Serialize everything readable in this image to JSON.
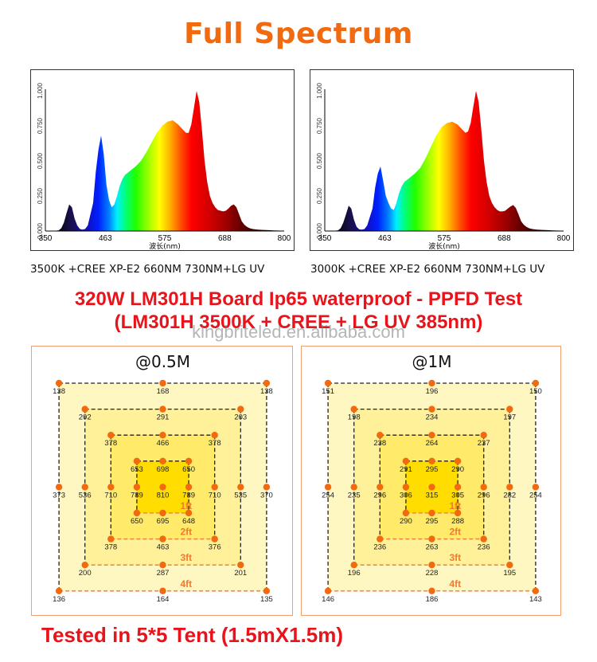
{
  "header": {
    "title": "Full Spectrum"
  },
  "ppfd_heading": {
    "line1": "320W LM301H Board Ip65 waterproof - PPFD Test",
    "line2": "(LM301H 3500K + CREE + LG UV 385nm)"
  },
  "watermark": "kingbriteled.en.alibaba.com",
  "footer": "Tested in 5*5 Tent (1.5mX1.5m)",
  "colors": {
    "title": "#f26a10",
    "heading_red": "#e8141b",
    "dot_orange": "#f26a10"
  },
  "chart_data": [
    {
      "type": "area",
      "title": "",
      "caption": "3500K +CREE XP-E2 660NM 730NM+LG UV",
      "xlabel": "波长(nm)",
      "ylabel": "",
      "xlim": [
        350,
        800
      ],
      "ylim": [
        0,
        1
      ],
      "xticks": [
        "350",
        "463",
        "575",
        "688",
        "800"
      ],
      "yticks": [
        "0.000",
        "0.250",
        "0.500",
        "0.750",
        "1.000"
      ],
      "x": [
        350,
        365,
        375,
        380,
        385,
        390,
        395,
        400,
        405,
        410,
        415,
        420,
        425,
        430,
        440,
        445,
        450,
        455,
        460,
        465,
        470,
        475,
        480,
        485,
        490,
        495,
        500,
        510,
        520,
        530,
        540,
        550,
        560,
        570,
        580,
        590,
        600,
        605,
        610,
        615,
        620,
        625,
        630,
        635,
        640,
        645,
        650,
        655,
        660,
        665,
        670,
        675,
        680,
        685,
        690,
        695,
        700,
        705,
        710,
        715,
        720,
        725,
        730,
        735,
        740,
        745,
        750,
        760,
        770,
        780,
        800
      ],
      "values": [
        0,
        0,
        0.005,
        0.02,
        0.06,
        0.13,
        0.19,
        0.17,
        0.09,
        0.04,
        0.015,
        0.01,
        0.015,
        0.04,
        0.2,
        0.42,
        0.58,
        0.68,
        0.55,
        0.33,
        0.22,
        0.17,
        0.19,
        0.25,
        0.32,
        0.37,
        0.4,
        0.43,
        0.46,
        0.5,
        0.56,
        0.63,
        0.7,
        0.75,
        0.78,
        0.79,
        0.76,
        0.74,
        0.72,
        0.7,
        0.7,
        0.76,
        0.88,
        1.0,
        0.92,
        0.72,
        0.5,
        0.35,
        0.25,
        0.2,
        0.17,
        0.15,
        0.145,
        0.14,
        0.145,
        0.16,
        0.18,
        0.19,
        0.17,
        0.12,
        0.07,
        0.045,
        0.03,
        0.02,
        0.015,
        0.012,
        0.01,
        0.008,
        0.006,
        0.004,
        0.002
      ]
    },
    {
      "type": "area",
      "title": "",
      "caption": "3000K +CREE XP-E2 660NM 730NM+LG UV",
      "xlabel": "波长(nm)",
      "ylabel": "",
      "xlim": [
        350,
        800
      ],
      "ylim": [
        0,
        1
      ],
      "xticks": [
        "350",
        "463",
        "575",
        "688",
        "800"
      ],
      "yticks": [
        "0.000",
        "0.250",
        "0.500",
        "0.750",
        "1.000"
      ],
      "x": [
        350,
        365,
        375,
        380,
        385,
        390,
        395,
        400,
        405,
        410,
        415,
        420,
        425,
        430,
        440,
        445,
        450,
        455,
        460,
        465,
        470,
        475,
        480,
        485,
        490,
        495,
        500,
        510,
        520,
        530,
        540,
        550,
        560,
        570,
        580,
        590,
        600,
        605,
        610,
        615,
        620,
        625,
        630,
        635,
        640,
        645,
        650,
        655,
        660,
        665,
        670,
        675,
        680,
        685,
        690,
        695,
        700,
        705,
        710,
        715,
        720,
        725,
        730,
        735,
        740,
        745,
        750,
        760,
        770,
        780,
        800
      ],
      "values": [
        0,
        0,
        0.005,
        0.02,
        0.06,
        0.12,
        0.18,
        0.16,
        0.08,
        0.03,
        0.012,
        0.01,
        0.015,
        0.04,
        0.16,
        0.31,
        0.41,
        0.46,
        0.36,
        0.25,
        0.2,
        0.16,
        0.15,
        0.2,
        0.27,
        0.32,
        0.35,
        0.38,
        0.41,
        0.45,
        0.52,
        0.6,
        0.68,
        0.74,
        0.77,
        0.78,
        0.76,
        0.74,
        0.72,
        0.7,
        0.71,
        0.77,
        0.89,
        1.0,
        0.92,
        0.72,
        0.5,
        0.35,
        0.25,
        0.2,
        0.17,
        0.15,
        0.14,
        0.14,
        0.145,
        0.16,
        0.175,
        0.185,
        0.165,
        0.12,
        0.07,
        0.045,
        0.03,
        0.02,
        0.015,
        0.012,
        0.01,
        0.008,
        0.006,
        0.004,
        0.002
      ]
    },
    {
      "type": "heatmap",
      "title": "@0.5M",
      "ring_labels": [
        "1ft",
        "2ft",
        "3ft",
        "4ft"
      ],
      "grid": [
        [
          138,
          null,
          null,
          null,
          168,
          null,
          null,
          null,
          138
        ],
        [
          null,
          202,
          null,
          null,
          291,
          null,
          null,
          203,
          null
        ],
        [
          null,
          null,
          378,
          null,
          466,
          null,
          378,
          null,
          null
        ],
        [
          null,
          null,
          null,
          653,
          698,
          650,
          null,
          null,
          null
        ],
        [
          373,
          536,
          710,
          789,
          810,
          789,
          710,
          535,
          370
        ],
        [
          null,
          null,
          null,
          650,
          695,
          648,
          null,
          null,
          null
        ],
        [
          null,
          null,
          378,
          null,
          463,
          null,
          376,
          null,
          null
        ],
        [
          null,
          200,
          null,
          null,
          287,
          null,
          null,
          201,
          null
        ],
        [
          136,
          null,
          null,
          null,
          164,
          null,
          null,
          null,
          135
        ]
      ]
    },
    {
      "type": "heatmap",
      "title": "@1M",
      "ring_labels": [
        "1ft",
        "2ft",
        "3ft",
        "4ft"
      ],
      "grid": [
        [
          151,
          null,
          null,
          null,
          196,
          null,
          null,
          null,
          150
        ],
        [
          null,
          198,
          null,
          null,
          234,
          null,
          null,
          197,
          null
        ],
        [
          null,
          null,
          238,
          null,
          264,
          null,
          237,
          null,
          null
        ],
        [
          null,
          null,
          null,
          291,
          295,
          290,
          null,
          null,
          null
        ],
        [
          254,
          235,
          296,
          306,
          315,
          305,
          296,
          282,
          254
        ],
        [
          null,
          null,
          null,
          290,
          295,
          288,
          null,
          null,
          null
        ],
        [
          null,
          null,
          236,
          null,
          263,
          null,
          236,
          null,
          null
        ],
        [
          null,
          196,
          null,
          null,
          228,
          null,
          null,
          195,
          null
        ],
        [
          146,
          null,
          null,
          null,
          186,
          null,
          null,
          null,
          143
        ]
      ]
    }
  ]
}
